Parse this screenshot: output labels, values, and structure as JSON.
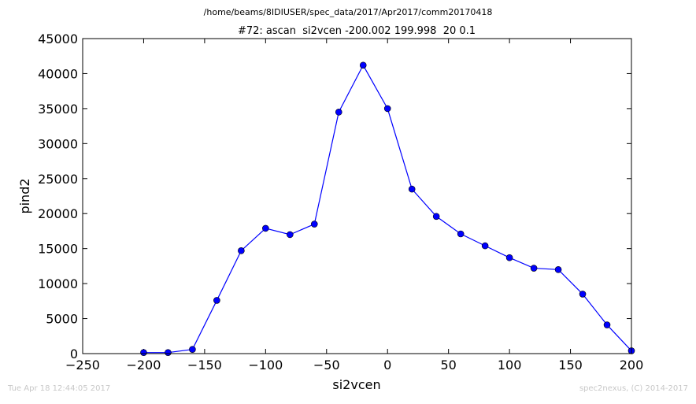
{
  "footer": {
    "timestamp": "Tue Apr 18 12:44:05 2017",
    "credit": "spec2nexus, (C) 2014-2017"
  },
  "chart_data": {
    "type": "line",
    "title": "/home/beams/8IDIUSER/spec_data/2017/Apr2017/comm20170418",
    "subtitle": "#72: ascan  si2vcen -200.002 199.998  20 0.1",
    "xlabel": "si2vcen",
    "ylabel": "pind2",
    "xlim": [
      -250,
      200
    ],
    "ylim": [
      0,
      45000
    ],
    "xticks": [
      -250,
      -200,
      -150,
      -100,
      -50,
      0,
      50,
      100,
      150,
      200
    ],
    "xtick_labels": [
      "−250",
      "−200",
      "−150",
      "−100",
      "−50",
      "0",
      "50",
      "100",
      "150",
      "200"
    ],
    "yticks": [
      0,
      5000,
      10000,
      15000,
      20000,
      25000,
      30000,
      35000,
      40000,
      45000
    ],
    "ytick_labels": [
      "0",
      "5000",
      "10000",
      "15000",
      "20000",
      "25000",
      "30000",
      "35000",
      "40000",
      "45000"
    ],
    "grid": false,
    "color": "#0000ff",
    "marker": "circle",
    "series": [
      {
        "x": [
          -200,
          -180,
          -160,
          -140,
          -120,
          -100,
          -80,
          -60,
          -40,
          -20,
          0,
          20,
          40,
          60,
          80,
          100,
          120,
          140,
          160,
          180,
          200
        ],
        "y": [
          150,
          150,
          600,
          7600,
          14700,
          17900,
          17000,
          18500,
          34500,
          41200,
          35000,
          23500,
          19600,
          17100,
          15400,
          13700,
          12200,
          12000,
          8500,
          4100,
          400
        ]
      }
    ]
  }
}
